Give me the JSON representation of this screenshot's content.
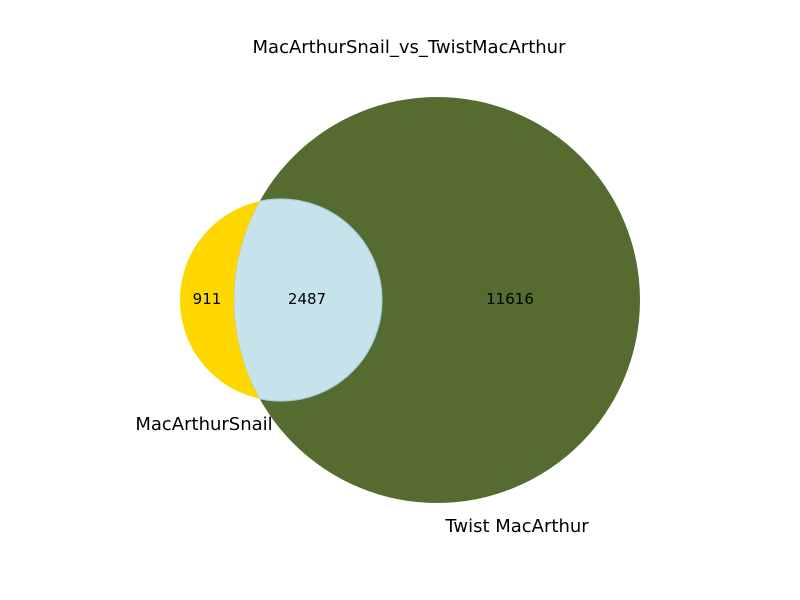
{
  "chart_data": {
    "type": "venn",
    "title": "MacArthurSnail_vs_TwistMacArthur",
    "sets": [
      {
        "name": "MacArthurSnail",
        "color": "#ffd700"
      },
      {
        "name": "Twist MacArthur",
        "color": "#556b2f"
      }
    ],
    "regions": {
      "only_a": "911",
      "intersection": "2487",
      "only_b": "11616"
    },
    "intersection_color": "#c6e3ec"
  }
}
